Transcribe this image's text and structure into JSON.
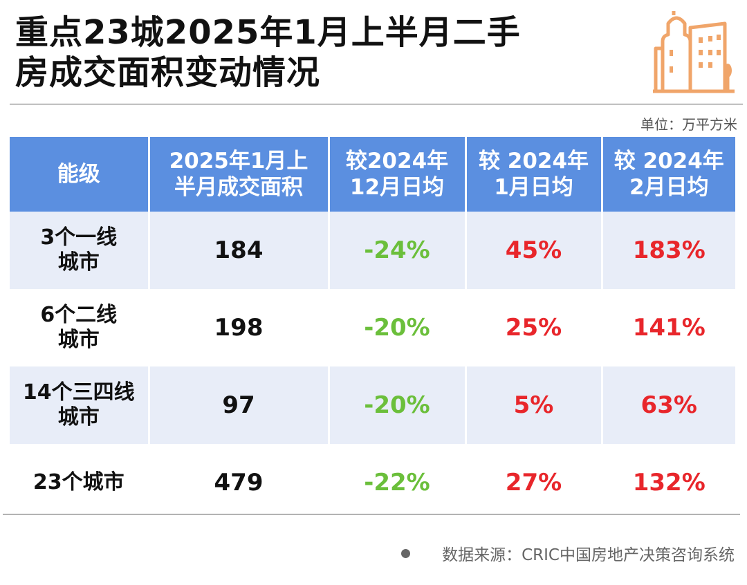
{
  "title": {
    "line1": "重点23城2025年1月上半月二手",
    "line2": "房成交面积变动情况"
  },
  "logo_icon": "city-buildings-icon",
  "accent_color": "#f0a56a",
  "unit": "单位：万平方米",
  "table": {
    "headers": [
      {
        "line1": "能级",
        "line2": ""
      },
      {
        "line1": "2025年1月上",
        "line2": "半月成交面积"
      },
      {
        "line1": "较2024年",
        "line2": "12月日均"
      },
      {
        "line1": "较 2024年",
        "line2": "1月日均"
      },
      {
        "line1": "较 2024年",
        "line2": "2月日均"
      }
    ],
    "rows": [
      {
        "city_line1": "3个一线",
        "city_line2": "城市",
        "area": "184",
        "vs_dec": "-24%",
        "vs_jan": "45%",
        "vs_feb": "183%"
      },
      {
        "city_line1": "6个二线",
        "city_line2": "城市",
        "area": "198",
        "vs_dec": "-20%",
        "vs_jan": "25%",
        "vs_feb": "141%"
      },
      {
        "city_line1": "14个三四线",
        "city_line2": "城市",
        "area": "97",
        "vs_dec": "-20%",
        "vs_jan": "5%",
        "vs_feb": "63%"
      },
      {
        "city_line1": "23个城市",
        "city_line2": "",
        "area": "479",
        "vs_dec": "-22%",
        "vs_jan": "27%",
        "vs_feb": "132%"
      }
    ]
  },
  "colors": {
    "header_bg": "#5b8fe0",
    "row_alt_bg": "#e8edf8",
    "negative": "#6bbf3b",
    "positive": "#e8262b"
  },
  "source": "数据来源：CRIC中国房地产决策咨询系统"
}
